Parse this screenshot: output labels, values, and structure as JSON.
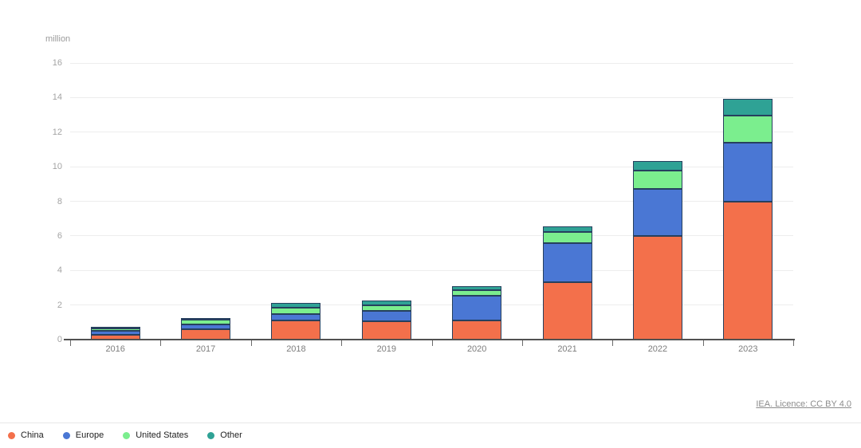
{
  "chart_data": {
    "type": "bar",
    "stacked": true,
    "unit_label": "million",
    "categories": [
      "2016",
      "2017",
      "2018",
      "2019",
      "2020",
      "2021",
      "2022",
      "2023"
    ],
    "series": [
      {
        "name": "China",
        "color": "#f3704b",
        "values": [
          0.3,
          0.58,
          1.1,
          1.06,
          1.1,
          3.3,
          6.0,
          8.0
        ]
      },
      {
        "name": "Europe",
        "color": "#4a77d4",
        "values": [
          0.2,
          0.31,
          0.36,
          0.6,
          1.45,
          2.27,
          2.73,
          3.4
        ]
      },
      {
        "name": "United States",
        "color": "#7bee8e",
        "values": [
          0.14,
          0.25,
          0.38,
          0.34,
          0.33,
          0.65,
          1.05,
          1.58
        ]
      },
      {
        "name": "Other",
        "color": "#2fa295",
        "values": [
          0.06,
          0.1,
          0.26,
          0.24,
          0.2,
          0.35,
          0.55,
          0.95
        ]
      }
    ],
    "ylim": [
      0,
      16
    ],
    "ytick_step": 2,
    "grid": true,
    "legend_position": "bottom-left",
    "segment_border_color": "#26405e"
  },
  "footer": {
    "source_link": "IEA. Licence: CC BY 4.0"
  }
}
